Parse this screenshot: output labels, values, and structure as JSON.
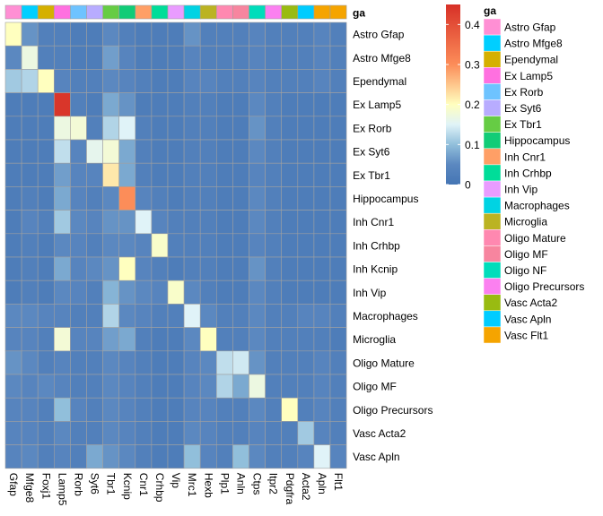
{
  "chart_data": {
    "type": "heatmap",
    "annotation_title": "ga",
    "legend_title": "ga",
    "color_scale": {
      "min": 0,
      "max": 0.45,
      "ticks": [
        0,
        0.1,
        0.2,
        0.3,
        0.4
      ],
      "tick_labels": [
        "0",
        "0.1",
        "0.2",
        "0.3",
        "0.4"
      ],
      "stops": [
        {
          "v": 0.0,
          "color": "#4575b4"
        },
        {
          "v": 0.05,
          "color": "#5b88c0"
        },
        {
          "v": 0.1,
          "color": "#91bfdb"
        },
        {
          "v": 0.15,
          "color": "#e0f3f8"
        },
        {
          "v": 0.2,
          "color": "#ffffbf"
        },
        {
          "v": 0.3,
          "color": "#fc8d59"
        },
        {
          "v": 0.45,
          "color": "#d73027"
        }
      ]
    },
    "columns": [
      "Gfap",
      "Mfge8",
      "Foxj1",
      "Lamp5",
      "Rorb",
      "Syt6",
      "Tbr1",
      "Kcnip",
      "Cnr1",
      "Crhbp",
      "Vip",
      "Mrc1",
      "Hexb",
      "Plp1",
      "Anln",
      "Ctps",
      "Itpr2",
      "Pdgfra",
      "Acta2",
      "Apln",
      "Flt1"
    ],
    "column_groups": [
      "Astro Gfap",
      "Astro Mfge8",
      "Ependymal",
      "Ex Lamp5",
      "Ex Rorb",
      "Ex Syt6",
      "Ex Tbr1",
      "Hippocampus",
      "Inh Cnr1",
      "Inh Crhbp",
      "Inh Vip",
      "Macrophages",
      "Microglia",
      "Oligo Mature",
      "Oligo MF",
      "Oligo NF",
      "Oligo Precursors",
      "Vasc Acta2",
      "Vasc Apln",
      "Vasc Flt1",
      "Vasc Flt1"
    ],
    "rows": [
      "Astro Gfap",
      "Astro Mfge8",
      "Ependymal",
      "Ex Lamp5",
      "Ex Rorb",
      "Ex Syt6",
      "Ex Tbr1",
      "Hippocampus",
      "Inh Cnr1",
      "Inh Crhbp",
      "Inh Kcnip",
      "Inh Vip",
      "Macrophages",
      "Microglia",
      "Oligo Mature",
      "Oligo MF",
      "Oligo Precursors",
      "Vasc Acta2",
      "Vasc Apln"
    ],
    "values": [
      [
        0.2,
        0.06,
        0.03,
        0.03,
        0.02,
        0.02,
        0.05,
        0.03,
        0.02,
        0.02,
        0.02,
        0.06,
        0.03,
        0.03,
        0.03,
        0.04,
        0.03,
        0.03,
        0.03,
        0.04,
        0.03
      ],
      [
        0.05,
        0.17,
        0.03,
        0.03,
        0.02,
        0.02,
        0.07,
        0.04,
        0.02,
        0.02,
        0.02,
        0.04,
        0.03,
        0.03,
        0.03,
        0.04,
        0.03,
        0.03,
        0.03,
        0.04,
        0.03
      ],
      [
        0.11,
        0.12,
        0.2,
        0.04,
        0.03,
        0.03,
        0.05,
        0.04,
        0.03,
        0.02,
        0.02,
        0.04,
        0.04,
        0.03,
        0.03,
        0.04,
        0.03,
        0.03,
        0.03,
        0.04,
        0.03
      ],
      [
        0.02,
        0.02,
        0.02,
        0.44,
        0.03,
        0.02,
        0.08,
        0.06,
        0.02,
        0.02,
        0.02,
        0.03,
        0.03,
        0.02,
        0.02,
        0.05,
        0.03,
        0.02,
        0.02,
        0.02,
        0.02
      ],
      [
        0.02,
        0.02,
        0.02,
        0.17,
        0.18,
        0.03,
        0.12,
        0.15,
        0.03,
        0.02,
        0.02,
        0.03,
        0.03,
        0.02,
        0.02,
        0.06,
        0.03,
        0.02,
        0.02,
        0.02,
        0.02
      ],
      [
        0.02,
        0.02,
        0.02,
        0.13,
        0.04,
        0.16,
        0.18,
        0.08,
        0.03,
        0.02,
        0.02,
        0.03,
        0.03,
        0.02,
        0.02,
        0.05,
        0.03,
        0.02,
        0.02,
        0.02,
        0.02
      ],
      [
        0.02,
        0.02,
        0.02,
        0.07,
        0.04,
        0.04,
        0.22,
        0.08,
        0.03,
        0.02,
        0.02,
        0.03,
        0.03,
        0.02,
        0.02,
        0.04,
        0.03,
        0.02,
        0.02,
        0.02,
        0.02
      ],
      [
        0.02,
        0.03,
        0.02,
        0.08,
        0.04,
        0.03,
        0.05,
        0.3,
        0.04,
        0.03,
        0.02,
        0.03,
        0.03,
        0.02,
        0.02,
        0.05,
        0.03,
        0.02,
        0.02,
        0.02,
        0.02
      ],
      [
        0.02,
        0.04,
        0.03,
        0.11,
        0.05,
        0.04,
        0.06,
        0.06,
        0.15,
        0.04,
        0.03,
        0.03,
        0.03,
        0.02,
        0.02,
        0.05,
        0.03,
        0.02,
        0.02,
        0.02,
        0.02
      ],
      [
        0.02,
        0.03,
        0.02,
        0.05,
        0.04,
        0.03,
        0.05,
        0.05,
        0.04,
        0.19,
        0.03,
        0.03,
        0.03,
        0.02,
        0.02,
        0.04,
        0.03,
        0.02,
        0.02,
        0.02,
        0.02
      ],
      [
        0.02,
        0.03,
        0.02,
        0.08,
        0.04,
        0.05,
        0.06,
        0.2,
        0.04,
        0.03,
        0.02,
        0.03,
        0.03,
        0.02,
        0.02,
        0.06,
        0.03,
        0.02,
        0.02,
        0.02,
        0.02
      ],
      [
        0.02,
        0.03,
        0.02,
        0.05,
        0.04,
        0.03,
        0.09,
        0.06,
        0.05,
        0.04,
        0.19,
        0.05,
        0.03,
        0.02,
        0.02,
        0.05,
        0.03,
        0.02,
        0.02,
        0.02,
        0.02
      ],
      [
        0.05,
        0.05,
        0.04,
        0.04,
        0.03,
        0.03,
        0.12,
        0.05,
        0.04,
        0.03,
        0.03,
        0.15,
        0.05,
        0.03,
        0.03,
        0.05,
        0.03,
        0.03,
        0.04,
        0.04,
        0.03
      ],
      [
        0.04,
        0.04,
        0.03,
        0.18,
        0.04,
        0.04,
        0.07,
        0.08,
        0.03,
        0.02,
        0.02,
        0.05,
        0.2,
        0.03,
        0.03,
        0.05,
        0.03,
        0.03,
        0.03,
        0.03,
        0.02
      ],
      [
        0.06,
        0.05,
        0.03,
        0.04,
        0.03,
        0.03,
        0.05,
        0.04,
        0.03,
        0.02,
        0.02,
        0.04,
        0.05,
        0.13,
        0.14,
        0.06,
        0.03,
        0.03,
        0.03,
        0.04,
        0.03
      ],
      [
        0.05,
        0.04,
        0.05,
        0.04,
        0.03,
        0.03,
        0.05,
        0.04,
        0.03,
        0.02,
        0.02,
        0.04,
        0.05,
        0.12,
        0.08,
        0.17,
        0.03,
        0.03,
        0.03,
        0.04,
        0.03
      ],
      [
        0.04,
        0.04,
        0.03,
        0.1,
        0.04,
        0.03,
        0.05,
        0.04,
        0.03,
        0.02,
        0.02,
        0.04,
        0.04,
        0.03,
        0.03,
        0.05,
        0.03,
        0.2,
        0.03,
        0.04,
        0.03
      ],
      [
        0.04,
        0.04,
        0.03,
        0.05,
        0.03,
        0.03,
        0.05,
        0.04,
        0.03,
        0.02,
        0.02,
        0.05,
        0.04,
        0.03,
        0.03,
        0.04,
        0.03,
        0.03,
        0.11,
        0.04,
        0.03
      ],
      [
        0.04,
        0.05,
        0.03,
        0.04,
        0.03,
        0.08,
        0.06,
        0.05,
        0.03,
        0.02,
        0.02,
        0.1,
        0.04,
        0.03,
        0.1,
        0.05,
        0.03,
        0.03,
        0.04,
        0.15,
        0.04
      ]
    ],
    "groups": [
      {
        "label": "Astro Gfap",
        "color": "#ff8fd4"
      },
      {
        "label": "Astro Mfge8",
        "color": "#00cfff"
      },
      {
        "label": "Ependymal",
        "color": "#d5b000"
      },
      {
        "label": "Ex Lamp5",
        "color": "#ff70e0"
      },
      {
        "label": "Ex Rorb",
        "color": "#6ec3ff"
      },
      {
        "label": "Ex Syt6",
        "color": "#b8acff"
      },
      {
        "label": "Ex Tbr1",
        "color": "#66cc44"
      },
      {
        "label": "Hippocampus",
        "color": "#11cc77"
      },
      {
        "label": "Inh Cnr1",
        "color": "#ff9f66"
      },
      {
        "label": "Inh Crhbp",
        "color": "#00dd99"
      },
      {
        "label": "Inh Vip",
        "color": "#e99cff"
      },
      {
        "label": "Macrophages",
        "color": "#00d3e3"
      },
      {
        "label": "Microglia",
        "color": "#bbb322"
      },
      {
        "label": "Oligo Mature",
        "color": "#ff88b0"
      },
      {
        "label": "Oligo MF",
        "color": "#f7859f"
      },
      {
        "label": "Oligo NF",
        "color": "#00ddbb"
      },
      {
        "label": "Oligo Precursors",
        "color": "#fb80f0"
      },
      {
        "label": "Vasc Acta2",
        "color": "#99bb11"
      },
      {
        "label": "Vasc Apln",
        "color": "#00ccff"
      },
      {
        "label": "Vasc Flt1",
        "color": "#f5a400"
      }
    ]
  }
}
